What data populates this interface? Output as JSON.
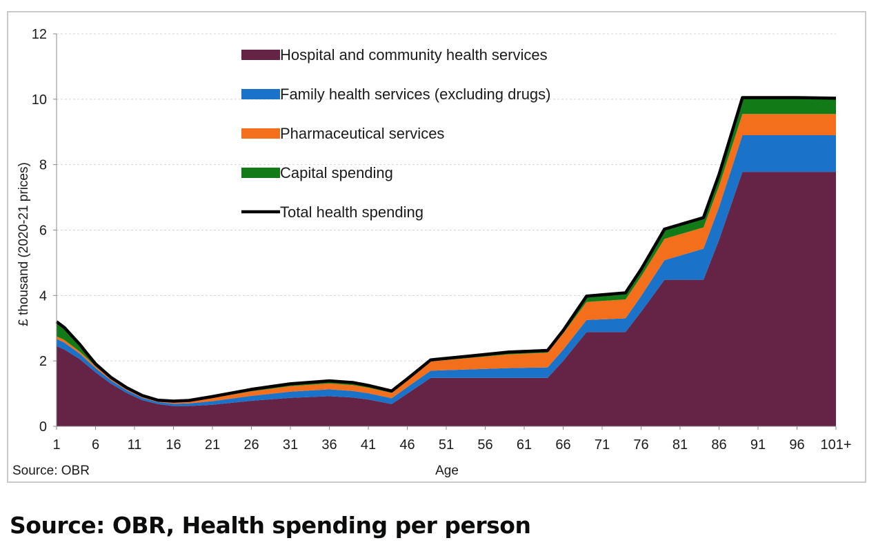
{
  "caption": "Source: OBR, Health spending per person",
  "chart_data": {
    "type": "area",
    "stacked": true,
    "xlabel": "Age",
    "ylabel": "£ thousand (2020-21 prices)",
    "source_note": "Source: OBR",
    "ylim": [
      0,
      12
    ],
    "yticks": [
      0,
      2,
      4,
      6,
      8,
      10,
      12
    ],
    "y_tick_labels": [
      "0",
      "2",
      "4",
      "6",
      "8",
      "10",
      "12"
    ],
    "xlim": [
      1,
      101
    ],
    "x_tick_values": [
      1,
      6,
      11,
      16,
      21,
      26,
      31,
      36,
      41,
      46,
      51,
      56,
      61,
      66,
      71,
      76,
      81,
      86,
      91,
      96,
      101
    ],
    "x_tick_labels": [
      "1",
      "6",
      "11",
      "16",
      "21",
      "26",
      "31",
      "36",
      "41",
      "46",
      "51",
      "56",
      "61",
      "66",
      "71",
      "76",
      "81",
      "86",
      "91",
      "96",
      "101+"
    ],
    "grid": "horizontal dashed",
    "legend_position": "top-center",
    "x": [
      1,
      2,
      3,
      4,
      5,
      6,
      8,
      10,
      12,
      14,
      16,
      18,
      21,
      26,
      31,
      36,
      39,
      41,
      44,
      46,
      49,
      54,
      59,
      64,
      66,
      69,
      74,
      76,
      79,
      84,
      86,
      89,
      91,
      96,
      101
    ],
    "series": [
      {
        "name": "Hospital and community health services",
        "color": "#652346",
        "values": [
          2.45,
          2.35,
          2.2,
          2.05,
          1.85,
          1.65,
          1.3,
          1.02,
          0.8,
          0.68,
          0.62,
          0.62,
          0.66,
          0.78,
          0.87,
          0.92,
          0.88,
          0.82,
          0.68,
          1.0,
          1.48,
          1.48,
          1.48,
          1.48,
          2.0,
          2.88,
          2.88,
          3.5,
          4.48,
          4.48,
          5.7,
          7.78,
          7.78,
          7.78,
          7.78
        ]
      },
      {
        "name": "Family health services (excluding drugs)",
        "color": "#1a73c9",
        "values": [
          0.22,
          0.21,
          0.19,
          0.17,
          0.15,
          0.13,
          0.1,
          0.08,
          0.07,
          0.06,
          0.07,
          0.08,
          0.11,
          0.15,
          0.19,
          0.21,
          0.2,
          0.19,
          0.18,
          0.2,
          0.22,
          0.26,
          0.3,
          0.32,
          0.34,
          0.37,
          0.42,
          0.48,
          0.6,
          0.95,
          1.0,
          1.12,
          1.12,
          1.12,
          1.12
        ]
      },
      {
        "name": "Pharmaceutical services",
        "color": "#f46f1b",
        "values": [
          0.08,
          0.08,
          0.07,
          0.06,
          0.06,
          0.05,
          0.05,
          0.05,
          0.05,
          0.05,
          0.06,
          0.07,
          0.1,
          0.14,
          0.17,
          0.18,
          0.18,
          0.17,
          0.16,
          0.2,
          0.28,
          0.35,
          0.42,
          0.45,
          0.5,
          0.55,
          0.58,
          0.6,
          0.65,
          0.65,
          0.65,
          0.65,
          0.65,
          0.65,
          0.65
        ]
      },
      {
        "name": "Capital spending",
        "color": "#137a18",
        "values": [
          0.45,
          0.38,
          0.3,
          0.22,
          0.14,
          0.08,
          0.04,
          0.03,
          0.02,
          0.01,
          0.02,
          0.02,
          0.04,
          0.06,
          0.07,
          0.08,
          0.08,
          0.07,
          0.06,
          0.05,
          0.05,
          0.06,
          0.07,
          0.07,
          0.09,
          0.18,
          0.2,
          0.22,
          0.3,
          0.3,
          0.35,
          0.5,
          0.5,
          0.5,
          0.48
        ]
      }
    ],
    "total_line": {
      "name": "Total health spending",
      "color": "#000000"
    }
  }
}
